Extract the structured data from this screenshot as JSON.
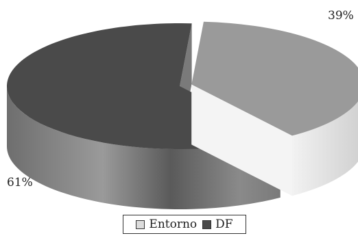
{
  "chart_data": {
    "type": "pie",
    "style": "3d-exploded",
    "categories": [
      "Entorno",
      "DF"
    ],
    "values": [
      39,
      61
    ],
    "labels": [
      "39%",
      "61%"
    ],
    "colors": {
      "Entorno": "#9a9a9a",
      "Entorno_side": "#e6e6e6",
      "DF": "#4a4a4a",
      "DF_side": "#8c8c8c"
    },
    "legend": {
      "position": "bottom-center",
      "items": [
        {
          "label": "Entorno",
          "color": "#dcdcdc"
        },
        {
          "label": "DF",
          "color": "#4a4a4a"
        }
      ]
    }
  }
}
